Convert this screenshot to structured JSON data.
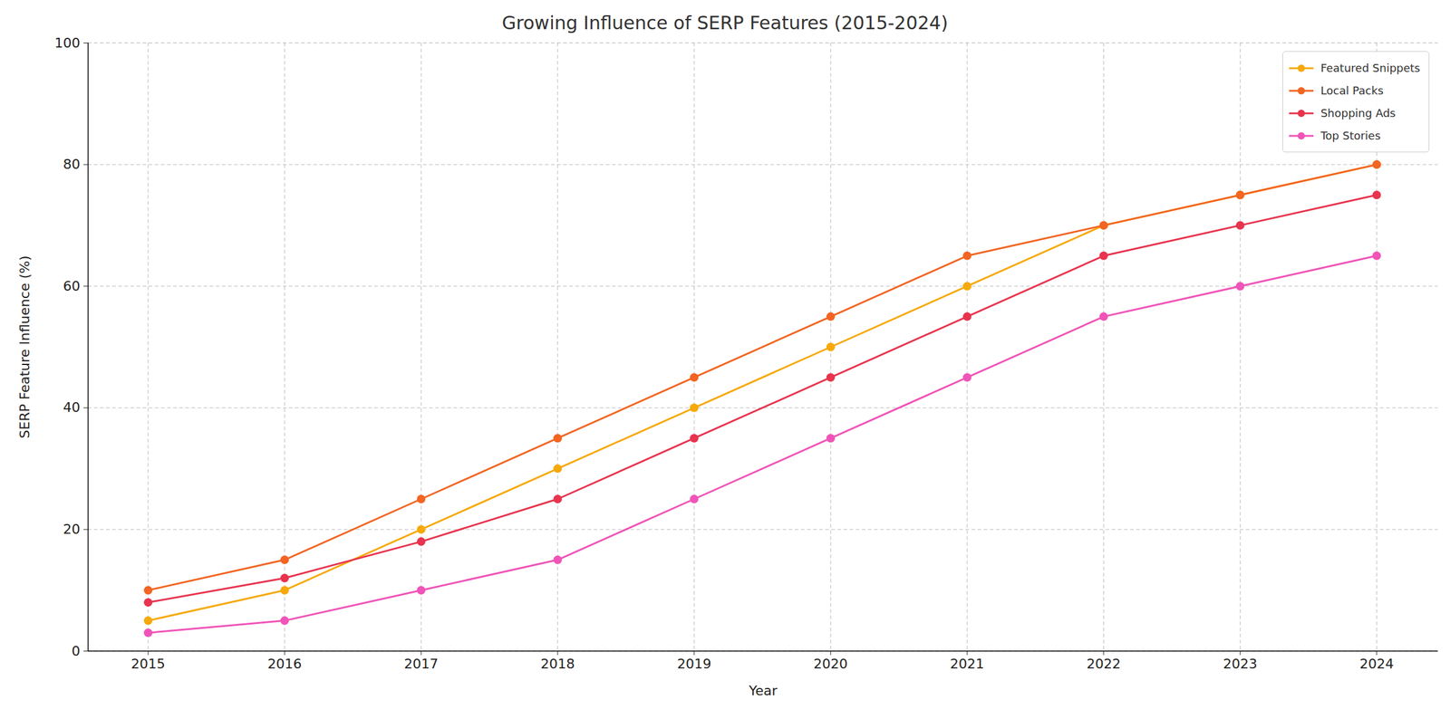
{
  "chart_data": {
    "type": "line",
    "title": "Growing Influence of SERP Features (2015-2024)",
    "x_label": "Year",
    "y_label": "SERP Feature Influence (%)",
    "x": [
      2015,
      2016,
      2017,
      2018,
      2019,
      2020,
      2021,
      2022,
      2023,
      2024
    ],
    "series": [
      {
        "name": "Featured Snippets",
        "color": "#f7a90b",
        "marker": "circle",
        "values": [
          5,
          10,
          20,
          30,
          40,
          50,
          60,
          70,
          75,
          80
        ]
      },
      {
        "name": "Local Packs",
        "color": "#f26522",
        "marker": "circle",
        "values": [
          10,
          15,
          25,
          35,
          45,
          55,
          65,
          70,
          75,
          80
        ]
      },
      {
        "name": "Shopping Ads",
        "color": "#e8344e",
        "marker": "circle",
        "values": [
          8,
          12,
          18,
          25,
          35,
          45,
          55,
          65,
          70,
          75
        ]
      },
      {
        "name": "Top Stories",
        "color": "#f054b8",
        "marker": "circle",
        "values": [
          3,
          5,
          10,
          15,
          25,
          35,
          45,
          55,
          60,
          65
        ]
      }
    ],
    "xlim": [
      2014.56,
      2024.45
    ],
    "xticks": [
      2015,
      2016,
      2017,
      2018,
      2019,
      2020,
      2021,
      2022,
      2023,
      2024
    ],
    "ylim": [
      0,
      100
    ],
    "yticks": [
      0,
      20,
      40,
      60,
      80,
      100
    ],
    "grid": true,
    "legend": "upper right"
  }
}
